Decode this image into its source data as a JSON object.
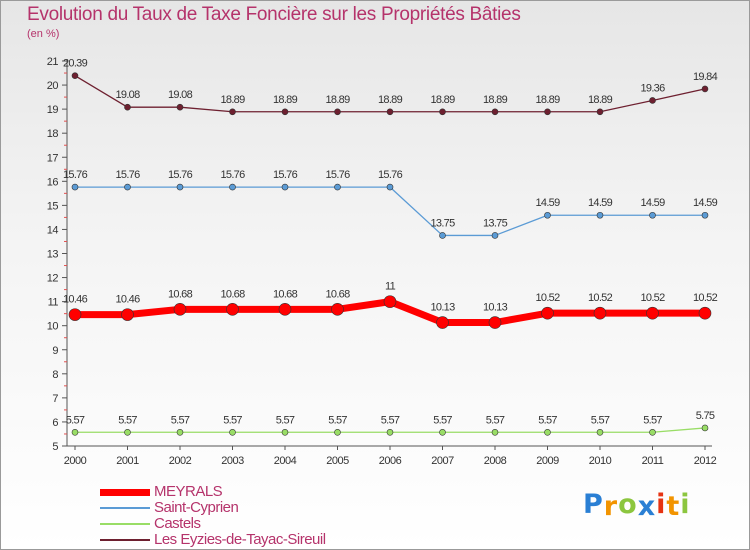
{
  "chart_data": {
    "type": "line",
    "title": "Evolution du Taux de Taxe Foncière sur les Propriétés Bâties",
    "subtitle": "(en %)",
    "xlabel": "",
    "ylabel": "",
    "categories": [
      "2000",
      "2001",
      "2002",
      "2003",
      "2004",
      "2005",
      "2006",
      "2007",
      "2008",
      "2009",
      "2010",
      "2011",
      "2012"
    ],
    "yticks": [
      "5",
      "6",
      "7",
      "8",
      "9",
      "10",
      "11",
      "12",
      "13",
      "14",
      "15",
      "16",
      "17",
      "18",
      "19",
      "20",
      "21"
    ],
    "ylim": [
      5,
      21
    ],
    "grid": false,
    "legend_position": "bottom-left",
    "series": [
      {
        "name": "Les Eyzies-de-Tayac-Sireuil",
        "color": "#6e2030",
        "values": [
          20.39,
          19.08,
          19.08,
          18.89,
          18.89,
          18.89,
          18.89,
          18.89,
          18.89,
          18.89,
          18.89,
          19.36,
          19.84
        ],
        "labels": [
          "20.39",
          "19.08",
          "19.08",
          "18.89",
          "18.89",
          "18.89",
          "18.89",
          "18.89",
          "18.89",
          "18.89",
          "18.89",
          "19.36",
          "19.84"
        ]
      },
      {
        "name": "Saint-Cyprien",
        "color": "#5b9bd5",
        "values": [
          15.76,
          15.76,
          15.76,
          15.76,
          15.76,
          15.76,
          15.76,
          13.75,
          13.75,
          14.59,
          14.59,
          14.59,
          14.59
        ],
        "labels": [
          "15.76",
          "15.76",
          "15.76",
          "15.76",
          "15.76",
          "15.76",
          "15.76",
          "13.75",
          "13.75",
          "14.59",
          "14.59",
          "14.59",
          "14.59"
        ]
      },
      {
        "name": "MEYRALS",
        "color": "#ff0000",
        "values": [
          10.46,
          10.46,
          10.68,
          10.68,
          10.68,
          10.68,
          11,
          10.13,
          10.13,
          10.52,
          10.52,
          10.52,
          10.52
        ],
        "labels": [
          "10.46",
          "10.46",
          "10.68",
          "10.68",
          "10.68",
          "10.68",
          "11",
          "10.13",
          "10.13",
          "10.52",
          "10.52",
          "10.52",
          "10.52"
        ]
      },
      {
        "name": "Castels",
        "color": "#99dd66",
        "values": [
          5.57,
          5.57,
          5.57,
          5.57,
          5.57,
          5.57,
          5.57,
          5.57,
          5.57,
          5.57,
          5.57,
          5.57,
          5.75
        ],
        "labels": [
          "5.57",
          "5.57",
          "5.57",
          "5.57",
          "5.57",
          "5.57",
          "5.57",
          "5.57",
          "5.57",
          "5.57",
          "5.57",
          "5.57",
          "5.75"
        ]
      }
    ],
    "legend": [
      "MEYRALS",
      "Saint-Cyprien",
      "Castels",
      "Les Eyzies-de-Tayac-Sireuil"
    ]
  },
  "logo": {
    "letters": [
      "P",
      "r",
      "o",
      "x",
      "i",
      "t",
      "i"
    ],
    "colors": [
      "#2a7fd4",
      "#f29400",
      "#8cc63f",
      "#2a7fd4",
      "#e63312",
      "#f29400",
      "#8cc63f"
    ]
  }
}
